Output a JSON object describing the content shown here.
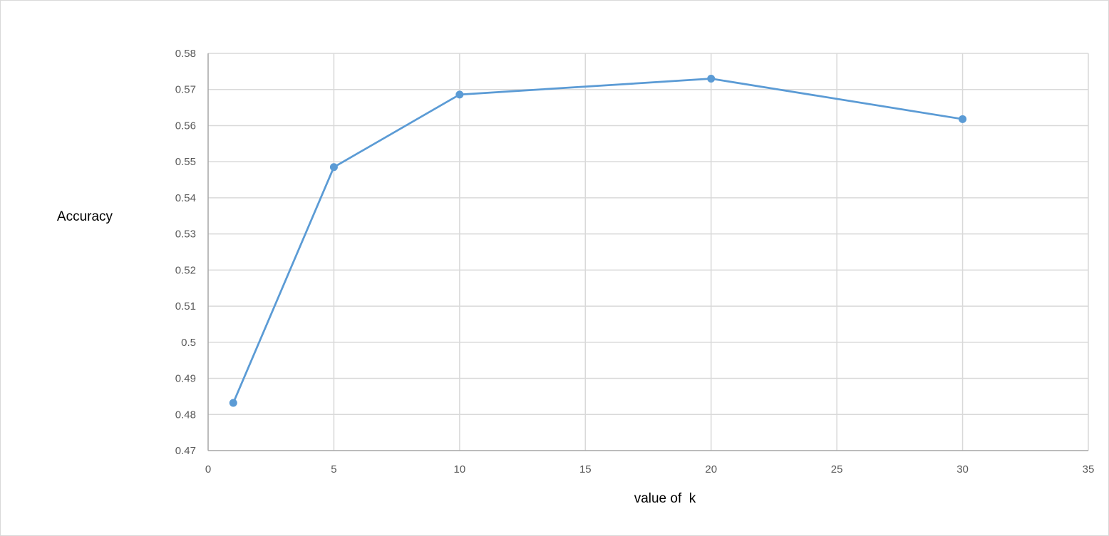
{
  "chart_data": {
    "type": "scatter",
    "title": "",
    "xlabel": "value of  k",
    "ylabel": "Accuracy",
    "xlim": [
      0,
      35
    ],
    "ylim": [
      0.47,
      0.58
    ],
    "x_ticks": [
      "0",
      "5",
      "10",
      "15",
      "20",
      "25",
      "30",
      "35"
    ],
    "y_ticks": [
      "0.47",
      "0.48",
      "0.49",
      "0.5",
      "0.51",
      "0.52",
      "0.53",
      "0.54",
      "0.55",
      "0.56",
      "0.57",
      "0.58"
    ],
    "grid": true,
    "legend": "none",
    "series": [
      {
        "color": "#5b9bd5",
        "marker": "circle",
        "line": "straight",
        "points": [
          {
            "x": 1,
            "y": 0.4832
          },
          {
            "x": 5,
            "y": 0.5485
          },
          {
            "x": 10,
            "y": 0.5686
          },
          {
            "x": 20,
            "y": 0.573
          },
          {
            "x": 30,
            "y": 0.5618
          }
        ]
      }
    ]
  }
}
